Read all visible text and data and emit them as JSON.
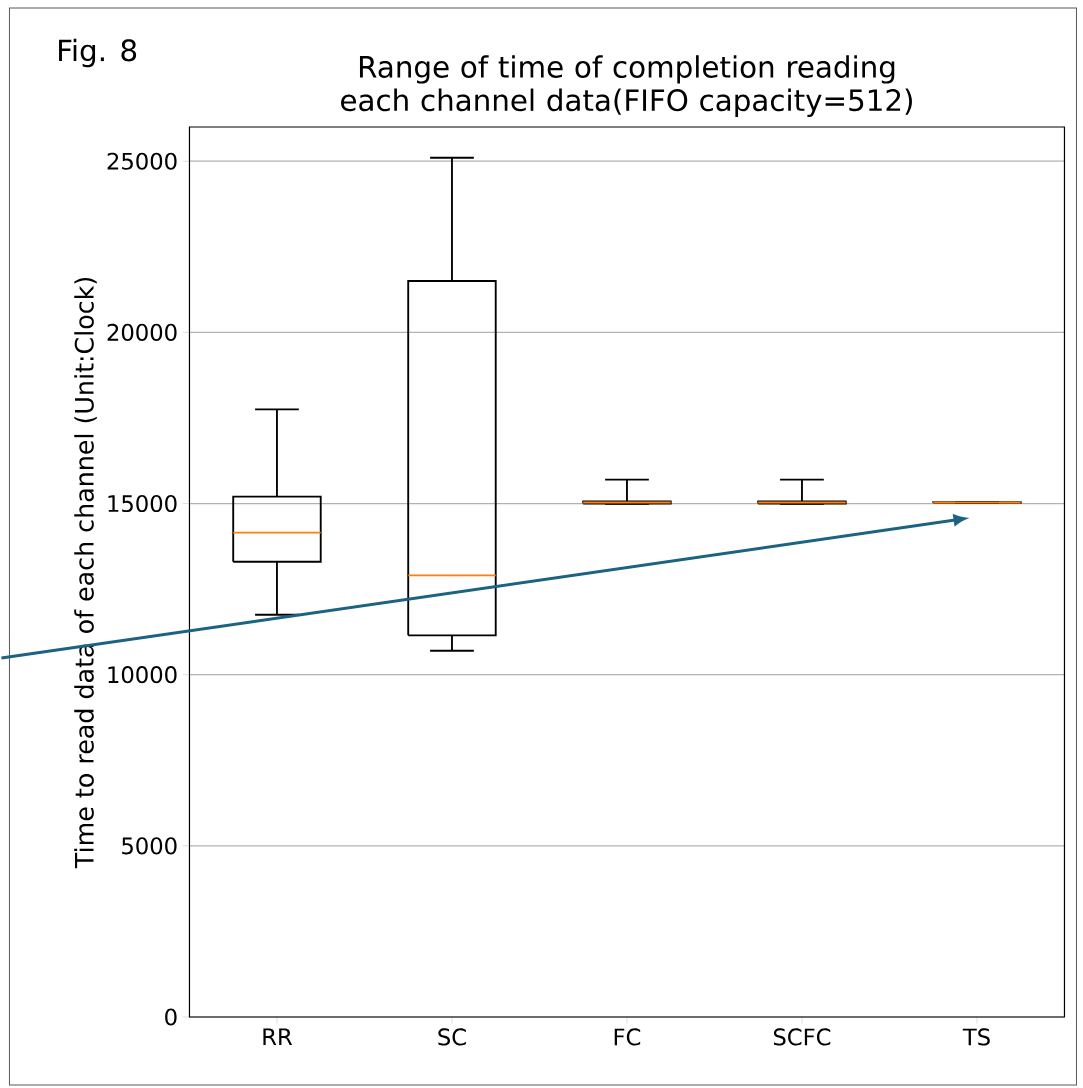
{
  "chart_data": {
    "type": "box",
    "title": "Range of time of completion reading each channel data(FIFO capacity=512)",
    "ylabel": "Time to read data of each channel (Unit:Clock)",
    "categories": [
      "RR",
      "SC",
      "FC",
      "SCFC",
      "TS"
    ],
    "boxes": [
      {
        "low": 11750,
        "q1": 13300,
        "median": 14150,
        "q3": 15200,
        "high": 17750
      },
      {
        "low": 10700,
        "q1": 11150,
        "median": 12900,
        "q3": 21500,
        "high": 25100
      },
      {
        "low": 14990,
        "q1": 15000,
        "median": 15030,
        "q3": 15060,
        "high": 15700
      },
      {
        "low": 14990,
        "q1": 15000,
        "median": 15030,
        "q3": 15060,
        "high": 15700
      },
      {
        "low": 15010,
        "q1": 15020,
        "median": 15030,
        "q3": 15040,
        "high": 15050
      }
    ],
    "color": "#000000",
    "ylim": [
      0,
      26000
    ],
    "yticks": [
      0,
      5000,
      10000,
      15000,
      20000,
      25000
    ],
    "grid": "y",
    "annotations": [
      "Fig. 8"
    ]
  }
}
